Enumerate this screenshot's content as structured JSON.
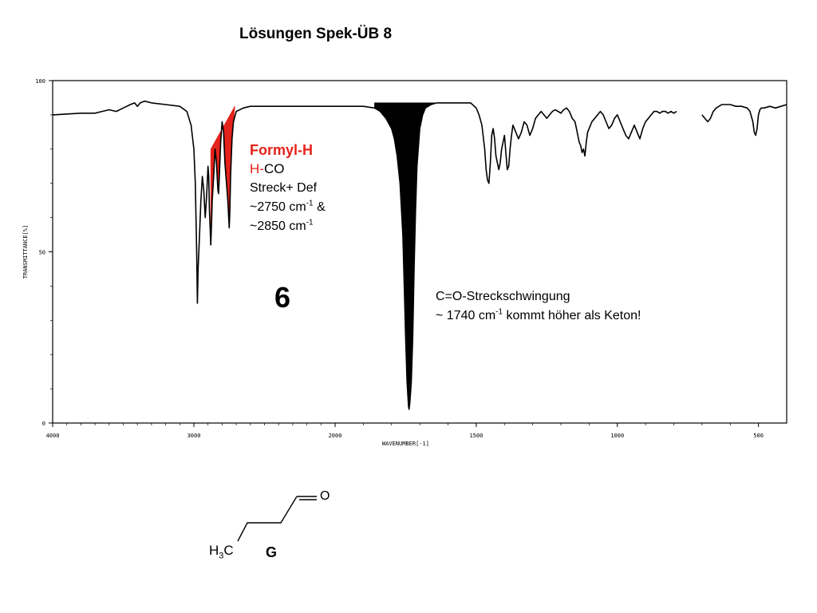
{
  "title": "Lösungen Spek-ÜB 8",
  "annotations": {
    "formyl": {
      "line1": "Formyl-H",
      "line2_red": "H-",
      "line2_rest": "CO",
      "line3": "Streck+ Def",
      "line4_pre": "~2750 cm",
      "line4_sup": "-1",
      "line4_post": " &",
      "line5_pre": "~2850 cm",
      "line5_sup": "-1"
    },
    "carbonyl": {
      "line1": "C=O-Streckschwingung",
      "line2_pre": "~ 1740 cm",
      "line2_sup": "-1",
      "line2_post": " kommt höher als Keton!"
    },
    "spectrum_number": "6"
  },
  "molecule": {
    "methyl_label": "H",
    "methyl_sub": "3",
    "methyl_tail": "C",
    "oxygen_label": "O",
    "compound_letter": "G"
  },
  "chart_data": {
    "type": "line",
    "xlabel": "WAVENUMBER[-1]",
    "ylabel": "TRANSMITTANCE[%]",
    "xlim": [
      4000,
      400
    ],
    "ylim": [
      0,
      100
    ],
    "x_ticks": [
      4000,
      3000,
      2000,
      1500,
      1000,
      500
    ],
    "y_ticks": [
      0,
      50,
      100
    ],
    "series": [
      {
        "x": [
          4000,
          3800,
          3700,
          3650,
          3600,
          3550,
          3500,
          3450,
          3420,
          3400,
          3380,
          3350,
          3300,
          3200,
          3100,
          3050,
          3020,
          3000,
          2990,
          2980,
          2975,
          2970,
          2960,
          2950,
          2940,
          2930,
          2920,
          2910,
          2900,
          2895,
          2890,
          2880,
          2875,
          2870,
          2860,
          2850,
          2840,
          2830,
          2825,
          2820,
          2810,
          2800,
          2790,
          2780,
          2760,
          2750,
          2745,
          2740,
          2730,
          2720,
          2700,
          2650,
          2600,
          2400,
          2200,
          2000,
          1900,
          1860,
          1840,
          1820,
          1800,
          1790,
          1780,
          1770,
          1760,
          1755,
          1750,
          1745,
          1740,
          1738,
          1735,
          1730,
          1725,
          1720,
          1715,
          1710,
          1700,
          1690,
          1680,
          1660,
          1640,
          1620,
          1600,
          1580,
          1560,
          1540,
          1520,
          1500,
          1490,
          1480,
          1470,
          1465,
          1460,
          1455,
          1450,
          1445,
          1440,
          1435,
          1430,
          1420,
          1415,
          1410,
          1405,
          1400,
          1395,
          1390,
          1385,
          1380,
          1375,
          1370,
          1360,
          1350,
          1340,
          1330,
          1320,
          1310,
          1300,
          1290,
          1280,
          1270,
          1260,
          1250,
          1240,
          1230,
          1220,
          1210,
          1200,
          1190,
          1180,
          1170,
          1160,
          1150,
          1145,
          1140,
          1135,
          1130,
          1125,
          1120,
          1115,
          1110,
          1105,
          1100,
          1090,
          1080,
          1070,
          1060,
          1050,
          1040,
          1030,
          1020,
          1010,
          1000,
          990,
          980,
          970,
          960,
          950,
          940,
          930,
          920,
          910,
          900,
          890,
          880,
          870,
          860,
          850,
          840,
          830,
          820,
          810,
          800,
          790
        ],
        "y": [
          90,
          90.5,
          90.5,
          91,
          91.5,
          91,
          92,
          93,
          93.5,
          92.5,
          93.5,
          94,
          93.5,
          93,
          92.5,
          91,
          87,
          80,
          70,
          50,
          35,
          45,
          55,
          65,
          72,
          68,
          60,
          66,
          75,
          72,
          62,
          52,
          58,
          65,
          72,
          80,
          76,
          68,
          67,
          72,
          82,
          88,
          85,
          76,
          65,
          57,
          62,
          72,
          83,
          88,
          91,
          92,
          92.5,
          92.5,
          92.5,
          92.5,
          92.5,
          92,
          91,
          89,
          86,
          83,
          78,
          70,
          55,
          40,
          25,
          12,
          5,
          4,
          6,
          12,
          25,
          45,
          62,
          75,
          86,
          90,
          92,
          93,
          93.5,
          93.5,
          93.5,
          93.5,
          93.5,
          93.5,
          93.5,
          92,
          90,
          87,
          80,
          74,
          71,
          70,
          76,
          84,
          86,
          83,
          78,
          74,
          76,
          80,
          82,
          84,
          79,
          74,
          75,
          80,
          84,
          87,
          85,
          83,
          85,
          88,
          87,
          84,
          86,
          89,
          90,
          91,
          90,
          89,
          90,
          91,
          91.5,
          91,
          90.5,
          91.5,
          92,
          91,
          89,
          88,
          86,
          84,
          82,
          81,
          79,
          80,
          78,
          82,
          85,
          86,
          88,
          89,
          90,
          91,
          90,
          88,
          86,
          87,
          89,
          90,
          88,
          86,
          84,
          83,
          85,
          87,
          85,
          83,
          86,
          88,
          89,
          90,
          91,
          91,
          90.5,
          91,
          91,
          90.5,
          91,
          90.5,
          91
        ]
      },
      {
        "x": [
          700,
          690,
          680,
          670,
          660,
          650,
          640,
          630,
          620,
          600,
          580,
          560,
          540,
          530,
          520,
          515,
          510,
          505,
          500,
          495,
          490,
          480,
          460,
          440,
          420,
          400
        ],
        "y": [
          90,
          89,
          88,
          89,
          91,
          92,
          92.5,
          93,
          93,
          93,
          92.5,
          92.5,
          92,
          91,
          88,
          85,
          84,
          86,
          90,
          91.5,
          92,
          92,
          92.5,
          92,
          92.5,
          93
        ]
      }
    ],
    "filled_bands_shown": [
      {
        "name": "Formyl-H",
        "color": "#e3221b",
        "x_range": [
          2880,
          2710
        ]
      },
      {
        "name": "C=O",
        "color": "#000000",
        "x_range": [
          1860,
          1620
        ]
      }
    ],
    "grid": false
  }
}
